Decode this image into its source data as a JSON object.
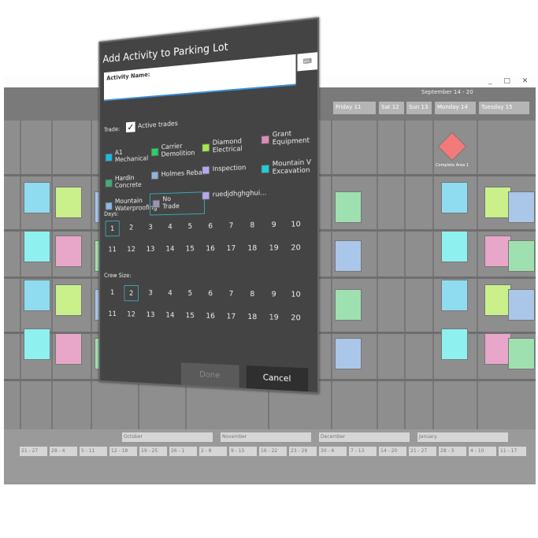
{
  "background_app": {
    "window_controls": "_ □ ✕",
    "week_title": "September 14 - 20",
    "day_headers": [
      "Friday 11",
      "Sat 12",
      "Sun 13",
      "Monday 14",
      "Tuesday 15"
    ],
    "milestone": {
      "label": "Complete Area 1",
      "color": "#f27a7a"
    },
    "months": [
      "October",
      "November",
      "December",
      "January"
    ],
    "weeks": [
      "21 - 27",
      "28 - 4",
      "5 - 11",
      "12 - 18",
      "19 - 25",
      "26 - 1",
      "2 - 8",
      "9 - 15",
      "16 - 22",
      "23 - 29",
      "30 - 6",
      "7 - 13",
      "14 - 20",
      "21 - 27",
      "28 - 3",
      "4 - 10",
      "11 - 17"
    ]
  },
  "dialog": {
    "title": "Add Activity to Parking Lot",
    "close_icon": "close-icon",
    "activity_name_label": "Activity Name:",
    "activity_name_value": "",
    "keyboard_icon": "keyboard-icon",
    "trade_label": "Trade:",
    "active_trades_label": "Active trades",
    "active_trades_checked": true,
    "trades": [
      {
        "name": "A1 Mechanical",
        "color": "#1cb8e8"
      },
      {
        "name": "Carrier Demolition",
        "color": "#22d36a"
      },
      {
        "name": "Diamond Electrical",
        "color": "#a6e84a"
      },
      {
        "name": "Grant Equipment",
        "color": "#e08ab8"
      },
      {
        "name": "Hardin Concrete",
        "color": "#3fae78"
      },
      {
        "name": "Holmes Rebar",
        "color": "#8fb4dc"
      },
      {
        "name": "Inspection",
        "color": "#b3a8f0"
      },
      {
        "name": "Mountain V Excavation",
        "color": "#17d3d8"
      },
      {
        "name": "Mountain Waterproofing",
        "color": "#8bb8e8"
      },
      {
        "name": "No Trade",
        "color": "#9a94b4",
        "selected": true
      },
      {
        "name": "ruedjdhghghui...",
        "color": "#b3a8f0"
      }
    ],
    "days_label": "Days:",
    "days": [
      "1",
      "2",
      "3",
      "4",
      "5",
      "6",
      "7",
      "8",
      "9",
      "10",
      "11",
      "12",
      "13",
      "14",
      "15",
      "16",
      "17",
      "18",
      "19",
      "20"
    ],
    "days_selected": "1",
    "crew_label": "Crew Size:",
    "crew": [
      "1",
      "2",
      "3",
      "4",
      "5",
      "6",
      "7",
      "8",
      "9",
      "10",
      "11",
      "12",
      "13",
      "14",
      "15",
      "16",
      "17",
      "18",
      "19",
      "20"
    ],
    "crew_selected": "2",
    "done_label": "Done",
    "cancel_label": "Cancel"
  }
}
